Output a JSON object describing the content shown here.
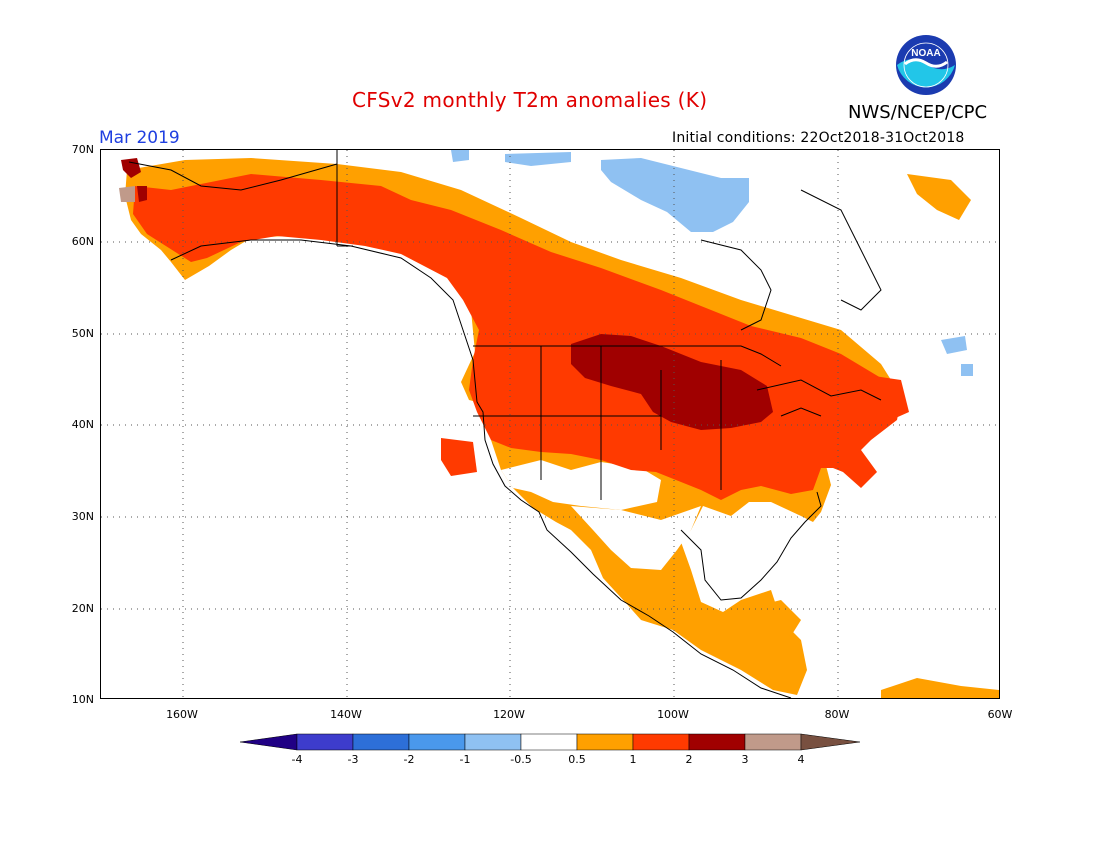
{
  "header": {
    "title": "CFSv2 monthly T2m anomalies (K)",
    "agency": "NWS/NCEP/CPC",
    "logo_text": "NOAA",
    "month": "Mar 2019",
    "initial_conditions": "Initial conditions: 22Oct2018-31Oct2018"
  },
  "map": {
    "lat_labels": [
      "70N",
      "60N",
      "50N",
      "40N",
      "30N",
      "20N",
      "10N"
    ],
    "lon_labels": [
      "160W",
      "140W",
      "120W",
      "100W",
      "80W",
      "60W"
    ],
    "region": "North America",
    "lat_range": [
      10,
      70
    ],
    "lon_range": [
      -170,
      -60
    ],
    "anomaly_regions": [
      {
        "area": "Northern Plains / Upper Midwest",
        "class": "2 to 3"
      },
      {
        "area": "Alaska, Western Canada, central and eastern US",
        "class": "1 to 2"
      },
      {
        "area": "Southern US, Mexico, Central America, Quebec margins",
        "class": "0.5 to 1"
      },
      {
        "area": "Hudson Bay / Nunavut, northern Arctic islands",
        "class": "-1 to -0.5"
      },
      {
        "area": "Western Alaska tip",
        "class": "3 to 4"
      }
    ]
  },
  "colorbar": {
    "labels": [
      "-4",
      "-3",
      "-2",
      "-1",
      "-0.5",
      "0.5",
      "1",
      "2",
      "3",
      "4"
    ],
    "colors": [
      "#200084",
      "#3d3ccc",
      "#2d6fd8",
      "#4a98ec",
      "#8fc1f2",
      "#ffffff",
      "#ffa000",
      "#ff3a00",
      "#a00000",
      "#c09a8a",
      "#785040"
    ]
  },
  "colors": {
    "title": "#e00000",
    "month": "#1f3fe0",
    "orange": "#ffa000",
    "red": "#ff3a00",
    "darkred": "#a00000",
    "lightblue": "#8fc1f2",
    "brown": "#c09a8a"
  }
}
